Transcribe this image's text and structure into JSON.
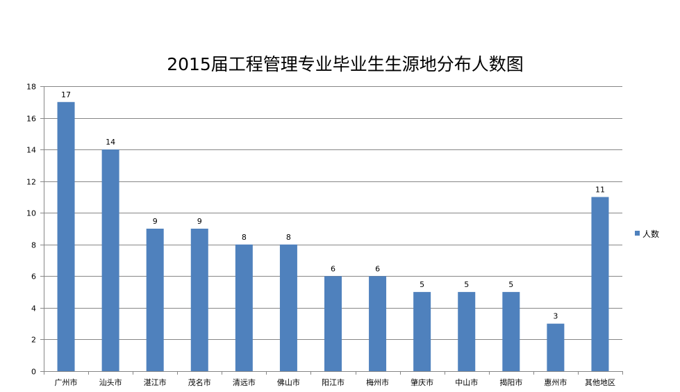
{
  "chart_data": {
    "type": "bar",
    "title": "2015届工程管理专业毕业生生源地分布人数图",
    "categories": [
      "广州市",
      "汕头市",
      "湛江市",
      "茂名市",
      "清远市",
      "佛山市",
      "阳江市",
      "梅州市",
      "肇庆市",
      "中山市",
      "揭阳市",
      "惠州市",
      "其他地区"
    ],
    "series": [
      {
        "name": "人数",
        "values": [
          17,
          14,
          9,
          9,
          8,
          8,
          6,
          6,
          5,
          5,
          5,
          3,
          11
        ],
        "color": "#4f81bd"
      }
    ],
    "xlabel": "",
    "ylabel": "",
    "ylim": [
      0,
      18
    ],
    "yticks": [
      0,
      2,
      4,
      6,
      8,
      10,
      12,
      14,
      16,
      18
    ],
    "grid": true,
    "data_labels": true,
    "legend_position": "right"
  }
}
